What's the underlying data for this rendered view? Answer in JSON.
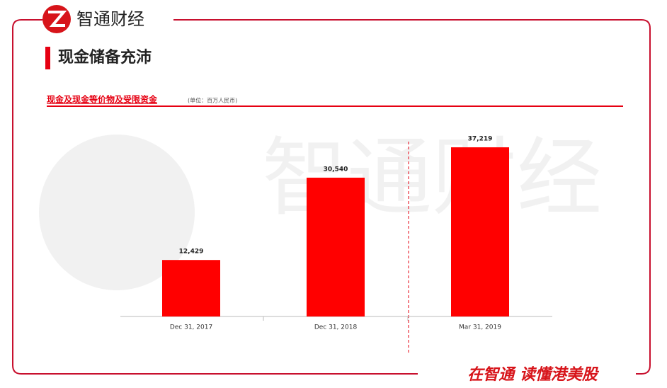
{
  "header": {
    "brand": "智通财经",
    "title": "现金储备充沛"
  },
  "chart_data": {
    "type": "bar",
    "title": "现金及现金等价物及受限资金",
    "subtitle": "(单位：百万人民币)",
    "categories": [
      "Dec 31, 2017",
      "Dec 31, 2018",
      "Mar 31, 2019"
    ],
    "values": [
      12429,
      30540,
      37219
    ],
    "value_labels": [
      "12,429",
      "30,540",
      "37,219"
    ],
    "color": "#ff0000"
  },
  "footer": {
    "slogan": "在智通 读懂港美股"
  }
}
